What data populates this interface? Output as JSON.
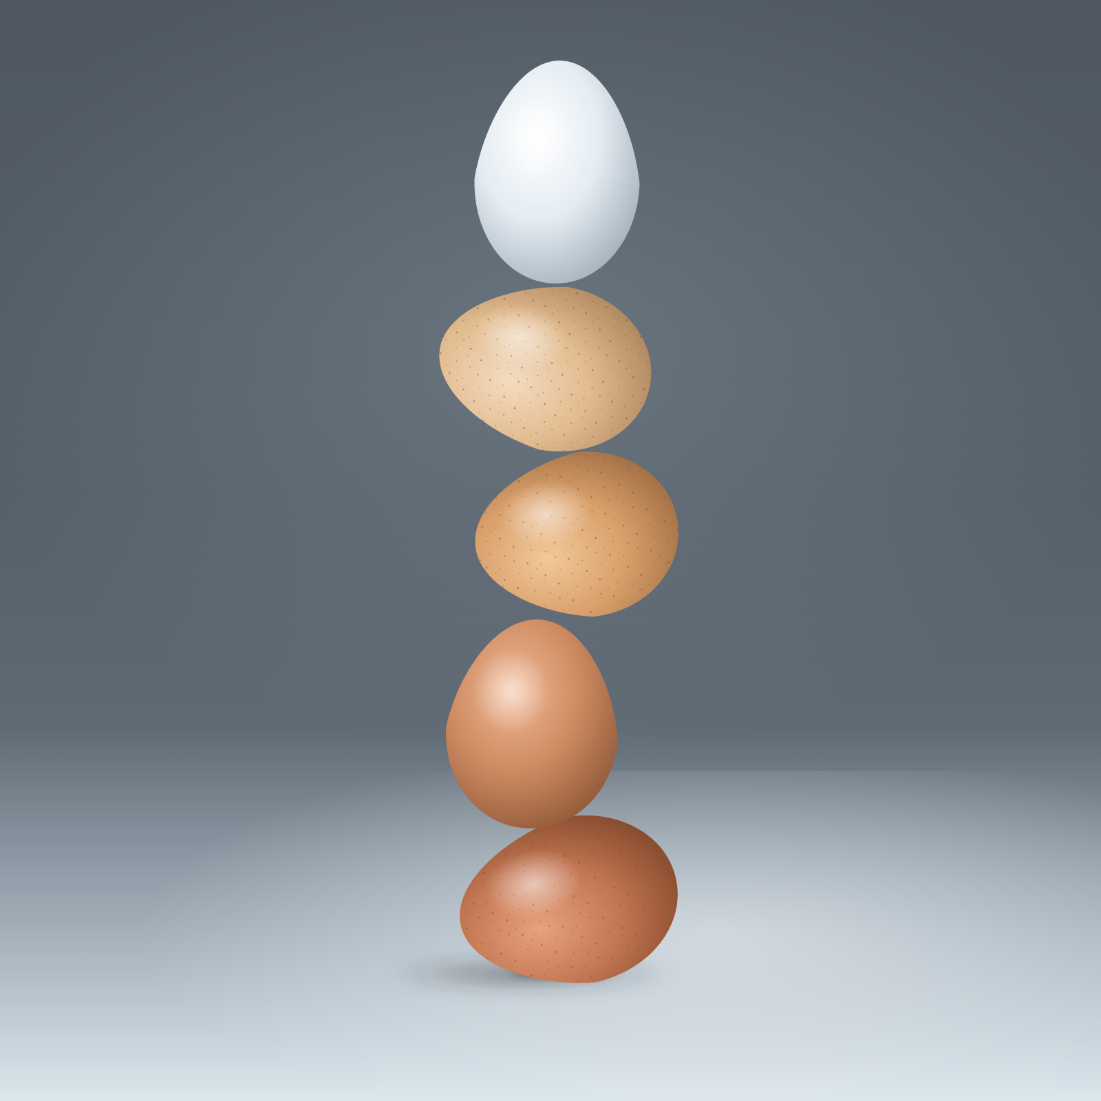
{
  "scene": {
    "backdrop": {
      "wall_color": "#56606a",
      "wall_light_color": "#7a8691",
      "floor_far_color": "#8c98a3",
      "floor_near_color": "#d5e0e8"
    },
    "eggs": [
      {
        "name": "egg-white-top",
        "color_light": "#ffffff",
        "color_mid": "#e4ecf2",
        "color_dark": "#9fabb6",
        "speckled": false
      },
      {
        "name": "egg-cream-speckled",
        "color_light": "#f4dcc0",
        "color_mid": "#e2bb8f",
        "color_dark": "#a9825a",
        "speckled": true
      },
      {
        "name": "egg-tan",
        "color_light": "#f2c99a",
        "color_mid": "#d9a06b",
        "color_dark": "#9c6a40",
        "speckled": true
      },
      {
        "name": "egg-light-brown",
        "color_light": "#f0b894",
        "color_mid": "#cf8c63",
        "color_dark": "#8c5536",
        "speckled": false
      },
      {
        "name": "egg-brown-bottom",
        "color_light": "#e8a27c",
        "color_mid": "#c27552",
        "color_dark": "#7e4528",
        "speckled": true
      }
    ],
    "shadow_color": "#2b2f33"
  }
}
